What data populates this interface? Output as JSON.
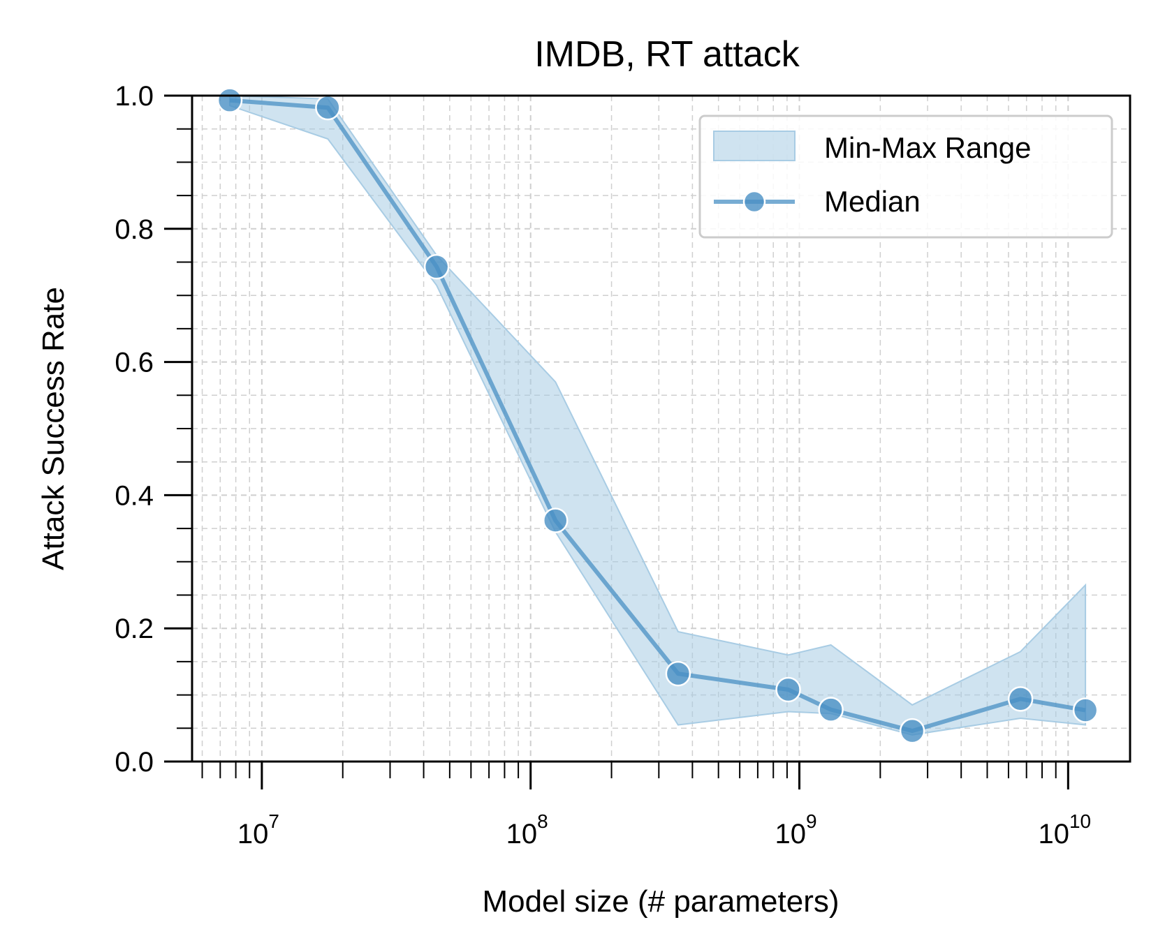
{
  "chart_data": {
    "type": "line",
    "title": "IMDB, RT attack",
    "xlabel": "Model size (# parameters)",
    "ylabel": "Attack Success Rate",
    "xscale": "log",
    "xlim": [
      5500000,
      17000000000
    ],
    "ylim": [
      0.0,
      1.0
    ],
    "grid": true,
    "legend_position": "top-right",
    "colors": {
      "line": "#4a90c4",
      "band": "#a8cce4",
      "grid": "#cfcfcf"
    },
    "x_ticks": [
      {
        "value": 10000000,
        "base": "10",
        "exp": "7"
      },
      {
        "value": 100000000,
        "base": "10",
        "exp": "8"
      },
      {
        "value": 1000000000,
        "base": "10",
        "exp": "9"
      },
      {
        "value": 10000000000,
        "base": "10",
        "exp": "10"
      }
    ],
    "y_ticks": [
      {
        "value": 0.0,
        "label": "0.0"
      },
      {
        "value": 0.2,
        "label": "0.2"
      },
      {
        "value": 0.4,
        "label": "0.4"
      },
      {
        "value": 0.6,
        "label": "0.6"
      },
      {
        "value": 0.8,
        "label": "0.8"
      },
      {
        "value": 1.0,
        "label": "1.0"
      }
    ],
    "x": [
      7600000,
      17600000,
      44700000,
      123700000,
      353800000,
      909000000,
      1310000000,
      2630000000,
      6650000000,
      11600000000
    ],
    "series": [
      {
        "name": "Median",
        "values": [
          0.993,
          0.982,
          0.743,
          0.362,
          0.132,
          0.108,
          0.078,
          0.046,
          0.094,
          0.077
        ]
      }
    ],
    "band": {
      "name": "Min-Max Range",
      "min": [
        0.985,
        0.935,
        0.715,
        0.345,
        0.055,
        0.075,
        0.072,
        0.04,
        0.065,
        0.055
      ],
      "max": [
        1.0,
        0.995,
        0.76,
        0.57,
        0.195,
        0.16,
        0.175,
        0.085,
        0.165,
        0.265
      ]
    }
  }
}
